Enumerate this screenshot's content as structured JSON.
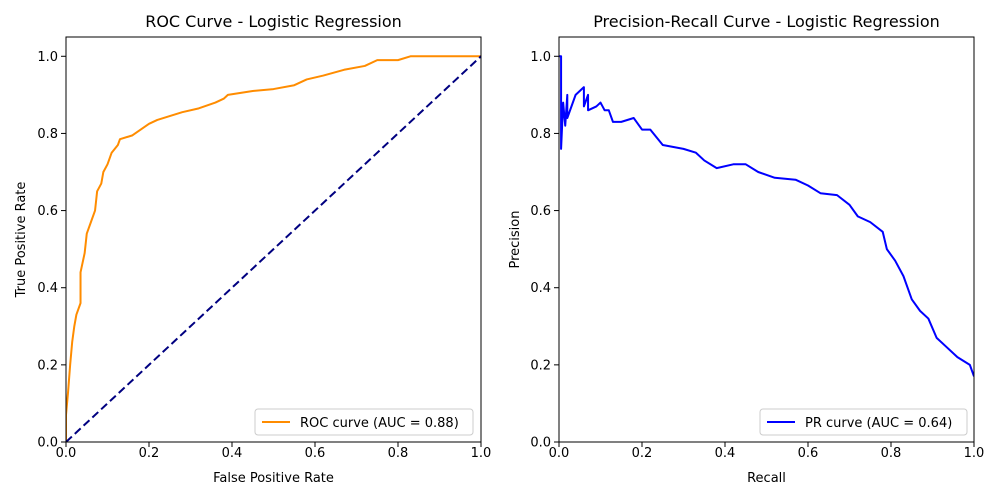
{
  "chart_data": [
    {
      "type": "line",
      "title": "ROC Curve - Logistic Regression",
      "xlabel": "False Positive Rate",
      "ylabel": "True Positive Rate",
      "xlim": [
        0,
        1
      ],
      "ylim": [
        0,
        1.05
      ],
      "xticks": [
        0,
        0.2,
        0.4,
        0.6,
        0.8,
        1.0
      ],
      "xticklabels": [
        "0.0",
        "0.2",
        "0.4",
        "0.6",
        "0.8",
        "1.0"
      ],
      "yticks": [
        0,
        0.2,
        0.4,
        0.6,
        0.8,
        1.0
      ],
      "yticklabels": [
        "0.0",
        "0.2",
        "0.4",
        "0.6",
        "0.8",
        "1.0"
      ],
      "grid": false,
      "legend": "lower-right",
      "series": [
        {
          "name": "ROC curve (AUC = 0.88)",
          "color": "#ff8c00",
          "style": "solid",
          "x": [
            0,
            0,
            0.005,
            0.01,
            0.015,
            0.02,
            0.025,
            0.035,
            0.035,
            0.045,
            0.05,
            0.06,
            0.07,
            0.075,
            0.085,
            0.09,
            0.1,
            0.11,
            0.125,
            0.13,
            0.16,
            0.18,
            0.2,
            0.22,
            0.25,
            0.28,
            0.32,
            0.36,
            0.38,
            0.39,
            0.45,
            0.5,
            0.55,
            0.58,
            0.62,
            0.67,
            0.72,
            0.75,
            0.8,
            0.83,
            1.0
          ],
          "y": [
            0,
            0.07,
            0.13,
            0.2,
            0.26,
            0.3,
            0.33,
            0.36,
            0.44,
            0.49,
            0.54,
            0.57,
            0.6,
            0.65,
            0.67,
            0.7,
            0.72,
            0.75,
            0.77,
            0.785,
            0.795,
            0.81,
            0.825,
            0.835,
            0.845,
            0.855,
            0.865,
            0.88,
            0.89,
            0.9,
            0.91,
            0.915,
            0.925,
            0.94,
            0.95,
            0.965,
            0.975,
            0.99,
            0.99,
            1.0,
            1.0
          ]
        },
        {
          "color": "#000080",
          "style": "dashed",
          "x": [
            0,
            1
          ],
          "y": [
            0,
            1
          ]
        }
      ]
    },
    {
      "type": "line",
      "title": "Precision-Recall Curve - Logistic Regression",
      "xlabel": "Recall",
      "ylabel": "Precision",
      "xlim": [
        0,
        1
      ],
      "ylim": [
        0,
        1.05
      ],
      "xticks": [
        0,
        0.2,
        0.4,
        0.6,
        0.8,
        1.0
      ],
      "xticklabels": [
        "0.0",
        "0.2",
        "0.4",
        "0.6",
        "0.8",
        "1.0"
      ],
      "yticks": [
        0,
        0.2,
        0.4,
        0.6,
        0.8,
        1.0
      ],
      "yticklabels": [
        "0.0",
        "0.2",
        "0.4",
        "0.6",
        "0.8",
        "1.0"
      ],
      "grid": false,
      "legend": "lower-right",
      "series": [
        {
          "name": "PR curve (AUC = 0.64)",
          "color": "#0000ff",
          "style": "solid",
          "x": [
            0,
            0.005,
            0.005,
            0.01,
            0.015,
            0.02,
            0.02,
            0.04,
            0.06,
            0.06,
            0.07,
            0.07,
            0.09,
            0.1,
            0.11,
            0.12,
            0.13,
            0.15,
            0.18,
            0.2,
            0.22,
            0.25,
            0.3,
            0.33,
            0.35,
            0.38,
            0.42,
            0.45,
            0.48,
            0.52,
            0.57,
            0.6,
            0.63,
            0.67,
            0.7,
            0.72,
            0.75,
            0.78,
            0.79,
            0.81,
            0.83,
            0.85,
            0.87,
            0.89,
            0.91,
            0.93,
            0.96,
            0.99,
            1.0
          ],
          "y": [
            1.0,
            1.0,
            0.76,
            0.88,
            0.82,
            0.9,
            0.84,
            0.9,
            0.92,
            0.87,
            0.9,
            0.86,
            0.87,
            0.88,
            0.86,
            0.86,
            0.83,
            0.83,
            0.84,
            0.81,
            0.81,
            0.77,
            0.76,
            0.75,
            0.73,
            0.71,
            0.72,
            0.72,
            0.7,
            0.685,
            0.68,
            0.665,
            0.645,
            0.64,
            0.615,
            0.585,
            0.57,
            0.545,
            0.5,
            0.47,
            0.43,
            0.37,
            0.34,
            0.32,
            0.27,
            0.25,
            0.22,
            0.2,
            0.17
          ]
        }
      ]
    }
  ]
}
